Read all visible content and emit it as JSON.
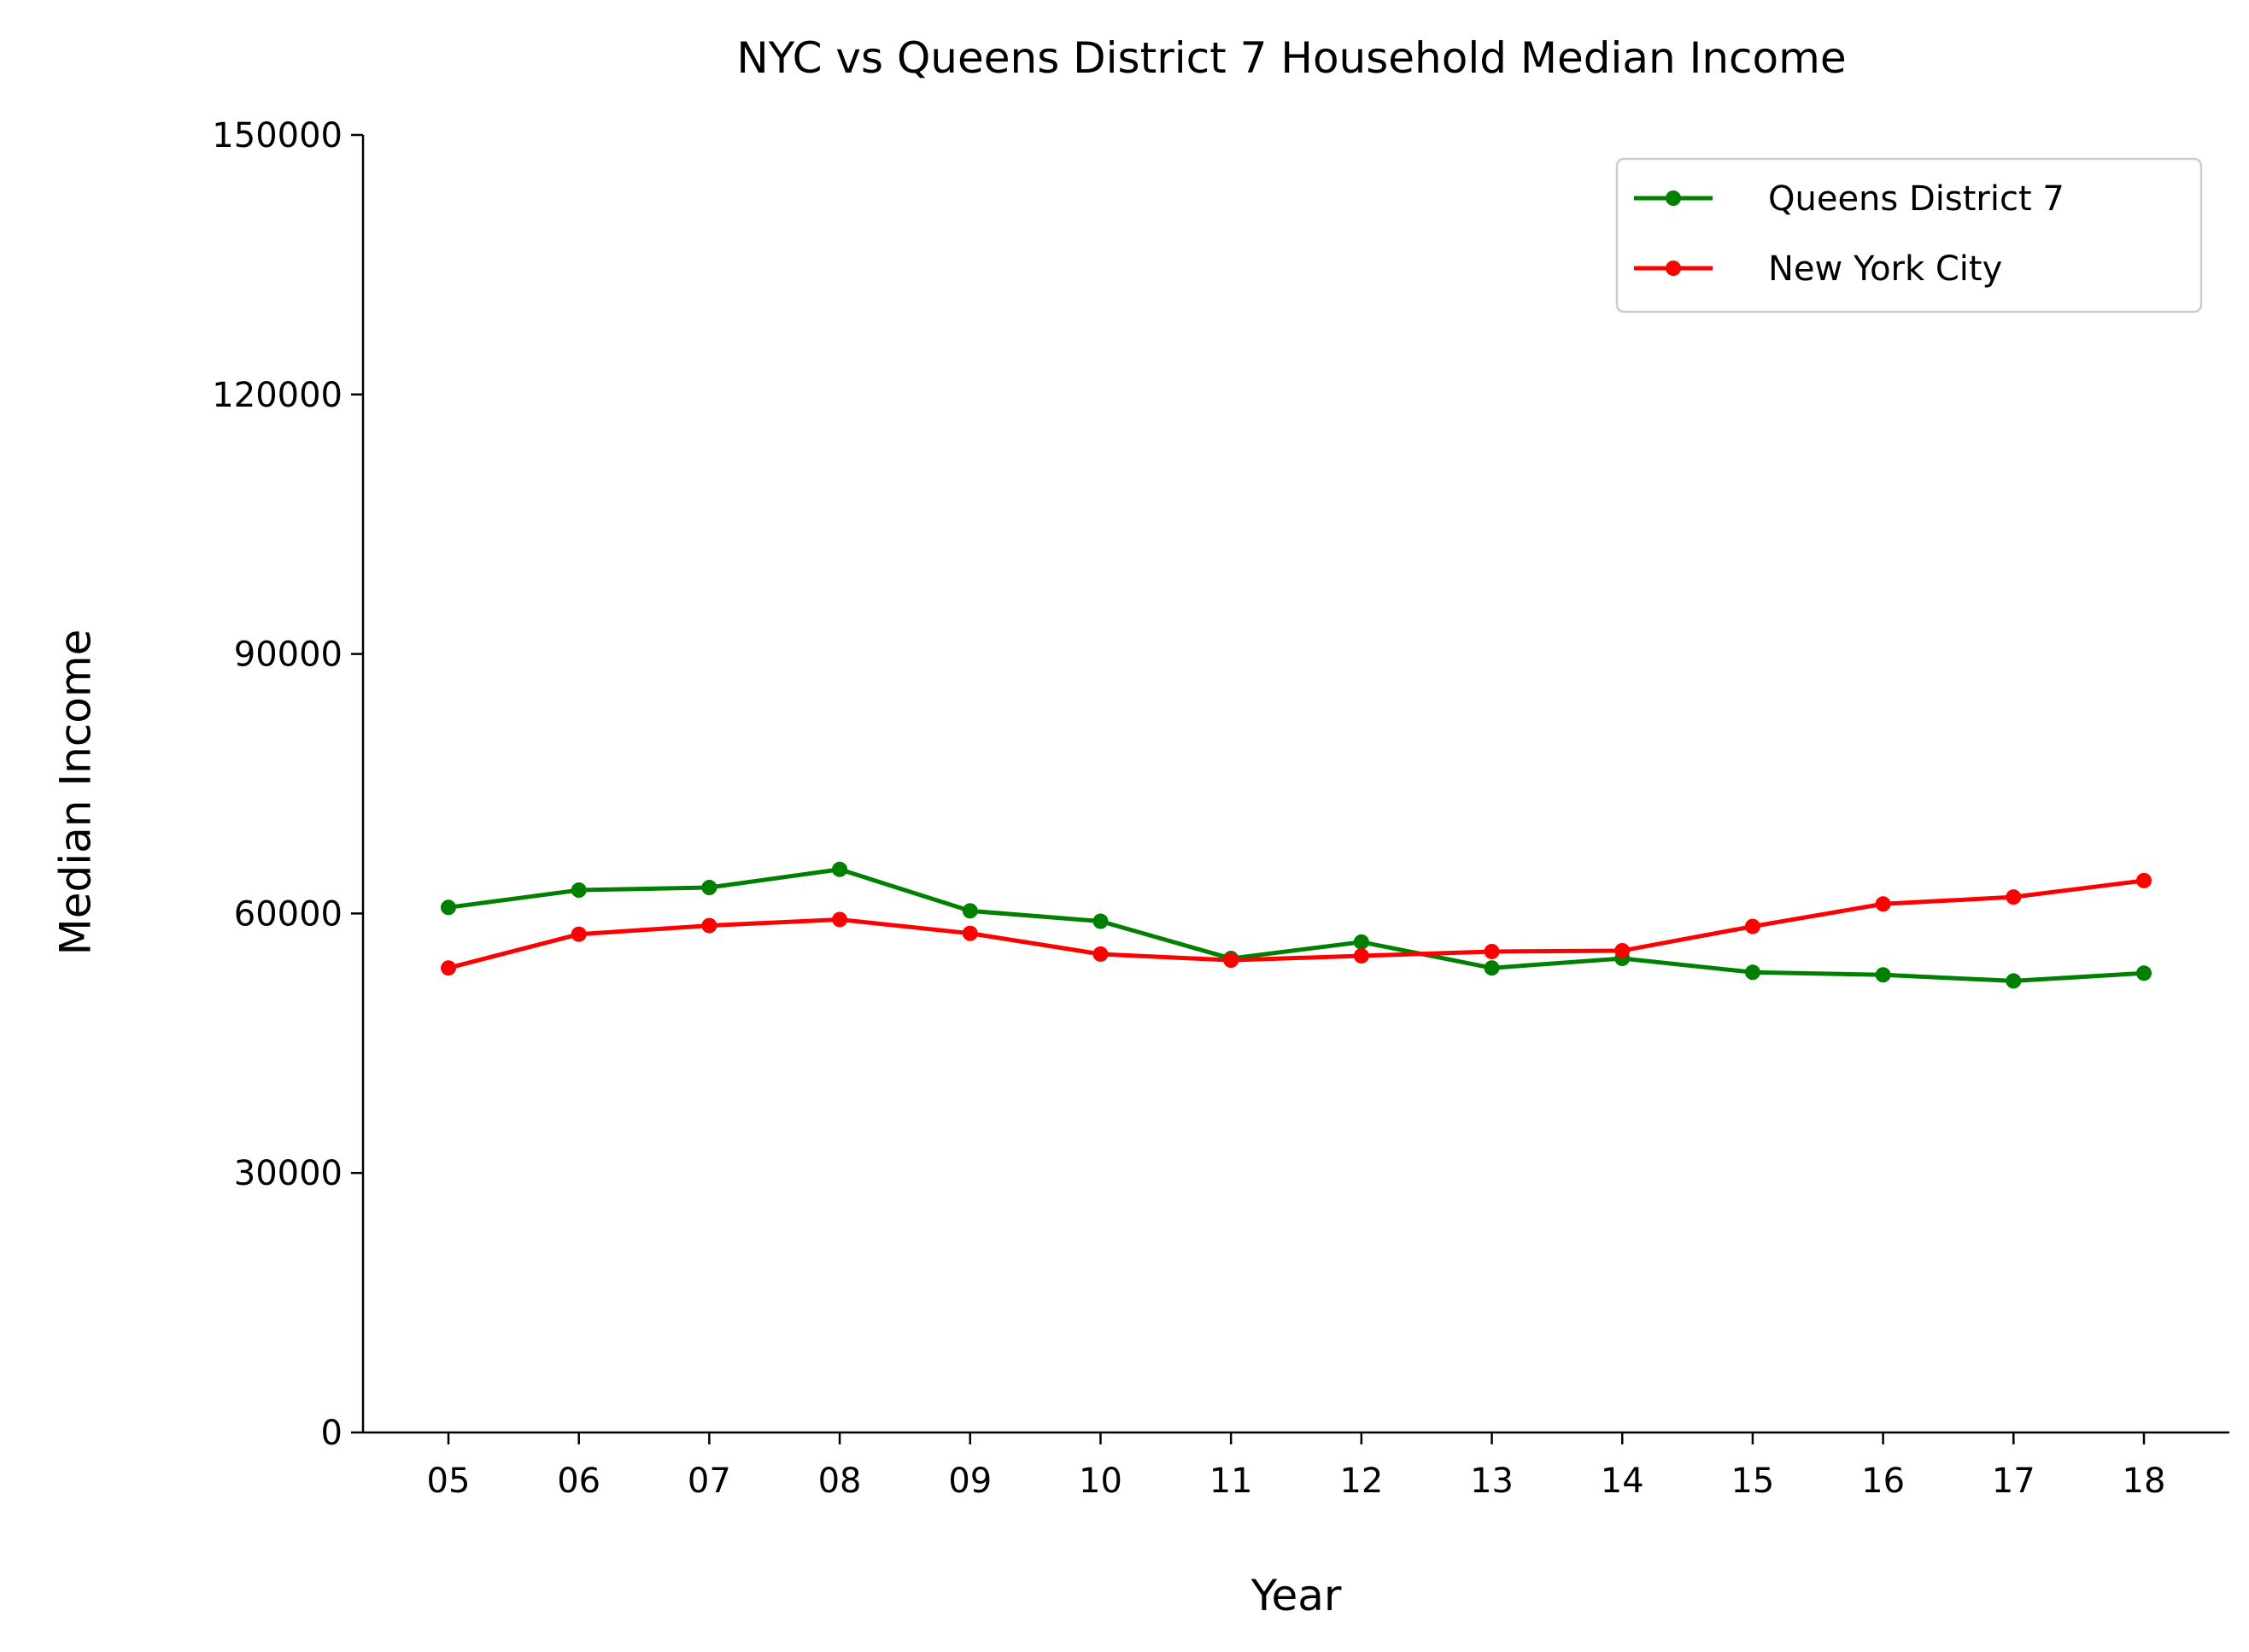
{
  "chart_data": {
    "type": "line",
    "title": "NYC vs Queens District 7 Household Median Income",
    "xlabel": "Year",
    "ylabel": "Median Income",
    "categories": [
      "05",
      "06",
      "07",
      "08",
      "09",
      "10",
      "11",
      "12",
      "13",
      "14",
      "15",
      "16",
      "17",
      "18"
    ],
    "y_ticks": [
      "0",
      "30000",
      "60000",
      "90000",
      "120000",
      "150000"
    ],
    "ylim": [
      0,
      150000
    ],
    "grid": false,
    "legend_position": "top-right",
    "series": [
      {
        "name": "Queens District 7",
        "color": "#008000",
        "values": [
          60700,
          62700,
          63000,
          65100,
          60300,
          59100,
          54800,
          56700,
          53700,
          54800,
          53200,
          52900,
          52200,
          53100
        ]
      },
      {
        "name": "New York City",
        "color": "#ff0000",
        "values": [
          53700,
          57600,
          58600,
          59300,
          57700,
          55300,
          54600,
          55100,
          55600,
          55700,
          58500,
          61100,
          61900,
          63800
        ]
      }
    ]
  }
}
